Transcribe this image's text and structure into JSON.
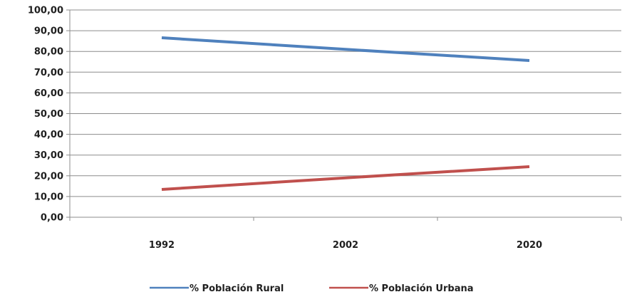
{
  "chart_data": {
    "type": "line",
    "categories": [
      "1992",
      "2002",
      "2020"
    ],
    "ylim": [
      0,
      100
    ],
    "yticks": [
      "0,00",
      "10,00",
      "20,00",
      "30,00",
      "40,00",
      "50,00",
      "60,00",
      "70,00",
      "80,00",
      "90,00",
      "100,00"
    ],
    "grid": true,
    "legend_position": "bottom",
    "series": [
      {
        "name": "% Población Rural",
        "values": [
          86.6,
          81.0,
          75.6
        ],
        "color": "#4f81bd"
      },
      {
        "name": "% Población Urbana",
        "values": [
          13.4,
          19.0,
          24.4
        ],
        "color": "#c0504d"
      }
    ]
  }
}
